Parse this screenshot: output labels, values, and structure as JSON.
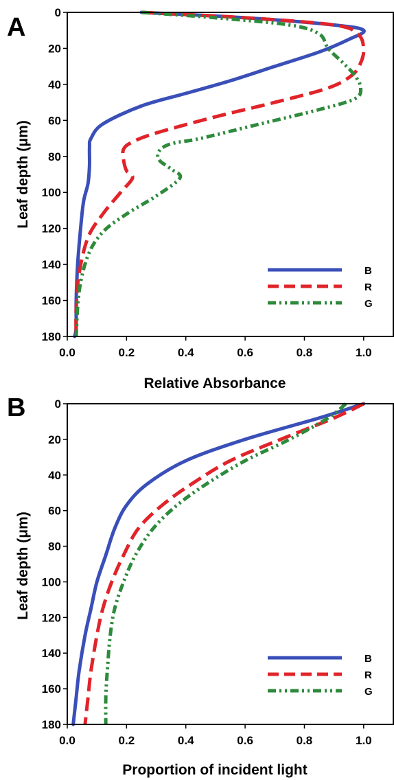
{
  "colors": {
    "B": "#3a4fb8",
    "R": "#e0242a",
    "G": "#2e8a3c"
  },
  "chart_data": [
    {
      "panel": "A",
      "type": "line",
      "xlabel": "Relative Absorbance",
      "ylabel": "Leaf depth (μm)",
      "xlim": [
        0,
        1.1
      ],
      "ylim": [
        180,
        0
      ],
      "xticks": [
        "0.0",
        "0.2",
        "0.4",
        "0.6",
        "0.8",
        "1.0"
      ],
      "yticks": [
        "0",
        "20",
        "40",
        "60",
        "80",
        "100",
        "120",
        "140",
        "160",
        "180"
      ],
      "legend_position": "bottom-right",
      "series": [
        {
          "name": "B",
          "color_key": "B",
          "style": "solid",
          "x": [
            0.25,
            0.6,
            0.9,
            1.0,
            0.95,
            0.85,
            0.7,
            0.55,
            0.4,
            0.25,
            0.12,
            0.08,
            0.075,
            0.075,
            0.07,
            0.055,
            0.045,
            0.035,
            0.03,
            0.03,
            0.025
          ],
          "y": [
            0,
            3,
            7,
            10,
            15,
            22,
            30,
            38,
            45,
            52,
            62,
            70,
            75,
            85,
            95,
            105,
            120,
            140,
            160,
            175,
            180
          ]
        },
        {
          "name": "R",
          "color_key": "R",
          "style": "dashed",
          "x": [
            0.25,
            0.6,
            0.9,
            0.98,
            1.0,
            0.99,
            0.96,
            0.88,
            0.7,
            0.5,
            0.3,
            0.22,
            0.19,
            0.19,
            0.2,
            0.22,
            0.18,
            0.12,
            0.07,
            0.04,
            0.03,
            0.03
          ],
          "y": [
            0,
            3,
            7,
            12,
            20,
            28,
            35,
            42,
            50,
            58,
            67,
            72,
            76,
            82,
            88,
            92,
            100,
            112,
            125,
            145,
            165,
            180
          ]
        },
        {
          "name": "G",
          "color_key": "G",
          "style": "dashdotdot",
          "x": [
            0.25,
            0.5,
            0.75,
            0.85,
            0.88,
            0.93,
            0.97,
            0.99,
            0.97,
            0.85,
            0.65,
            0.45,
            0.35,
            0.31,
            0.31,
            0.35,
            0.38,
            0.3,
            0.2,
            0.12,
            0.07,
            0.04,
            0.03
          ],
          "y": [
            0,
            3,
            7,
            12,
            20,
            28,
            35,
            42,
            48,
            54,
            62,
            70,
            73,
            77,
            82,
            87,
            92,
            102,
            112,
            122,
            135,
            155,
            180
          ]
        }
      ]
    },
    {
      "panel": "B",
      "type": "line",
      "xlabel": "Proportion of incident light",
      "ylabel": "Leaf depth (μm)",
      "xlim": [
        0,
        1.1
      ],
      "ylim": [
        180,
        0
      ],
      "xticks": [
        "0.0",
        "0.2",
        "0.4",
        "0.6",
        "0.8",
        "1.0"
      ],
      "yticks": [
        "0",
        "20",
        "40",
        "60",
        "80",
        "100",
        "120",
        "140",
        "160",
        "180"
      ],
      "legend_position": "bottom-right",
      "series": [
        {
          "name": "B",
          "color_key": "B",
          "style": "solid",
          "x": [
            1.0,
            0.85,
            0.6,
            0.4,
            0.27,
            0.2,
            0.16,
            0.13,
            0.1,
            0.08,
            0.06,
            0.04,
            0.03,
            0.02
          ],
          "y": [
            0,
            8,
            20,
            32,
            45,
            57,
            70,
            85,
            100,
            115,
            130,
            150,
            165,
            180
          ]
        },
        {
          "name": "R",
          "color_key": "R",
          "style": "dashed",
          "x": [
            1.0,
            0.9,
            0.72,
            0.55,
            0.42,
            0.32,
            0.24,
            0.19,
            0.15,
            0.12,
            0.1,
            0.08,
            0.07,
            0.06
          ],
          "y": [
            0,
            8,
            20,
            32,
            45,
            57,
            70,
            85,
            100,
            115,
            130,
            150,
            165,
            180
          ]
        },
        {
          "name": "G",
          "color_key": "G",
          "style": "dashdotdot",
          "x": [
            0.94,
            0.88,
            0.75,
            0.6,
            0.47,
            0.37,
            0.29,
            0.23,
            0.19,
            0.16,
            0.145,
            0.135,
            0.13,
            0.13
          ],
          "y": [
            0,
            8,
            20,
            32,
            45,
            57,
            70,
            85,
            100,
            115,
            130,
            150,
            165,
            180
          ]
        }
      ]
    }
  ]
}
